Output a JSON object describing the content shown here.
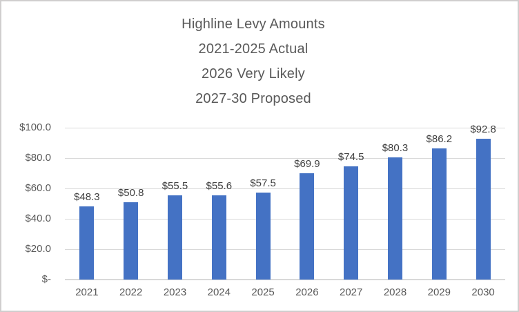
{
  "title": {
    "lines": [
      "Highline Levy Amounts",
      "2021-2025 Actual",
      "2026 Very Likely",
      "2027-30 Proposed"
    ]
  },
  "colors": {
    "bar": "#4472c4",
    "gridline": "#d9d9d9",
    "axis_line": "#d9d9d9",
    "axis_text": "#595959",
    "data_label_text": "#404040",
    "title_text": "#595959",
    "canvas_border": "#d0cece",
    "background": "#ffffff"
  },
  "chart_data": {
    "type": "bar",
    "title": "Highline Levy Amounts 2021-2025 Actual 2026 Very Likely 2027-30 Proposed",
    "categories": [
      "2021",
      "2022",
      "2023",
      "2024",
      "2025",
      "2026",
      "2027",
      "2028",
      "2029",
      "2030"
    ],
    "values": [
      48.3,
      50.8,
      55.5,
      55.6,
      57.5,
      69.9,
      74.5,
      80.3,
      86.2,
      92.8
    ],
    "data_labels": [
      "$48.3",
      "$50.8",
      "$55.5",
      "$55.6",
      "$57.5",
      "$69.9",
      "$74.5",
      "$80.3",
      "$86.2",
      "$92.8"
    ],
    "xlabel": "",
    "ylabel": "",
    "ylim": [
      0,
      100
    ],
    "yticks": [
      0,
      20,
      40,
      60,
      80,
      100
    ],
    "ytick_labels": [
      "$-",
      "$20.0",
      "$40.0",
      "$60.0",
      "$80.0",
      "$100.0"
    ],
    "grid": true,
    "legend": false
  }
}
